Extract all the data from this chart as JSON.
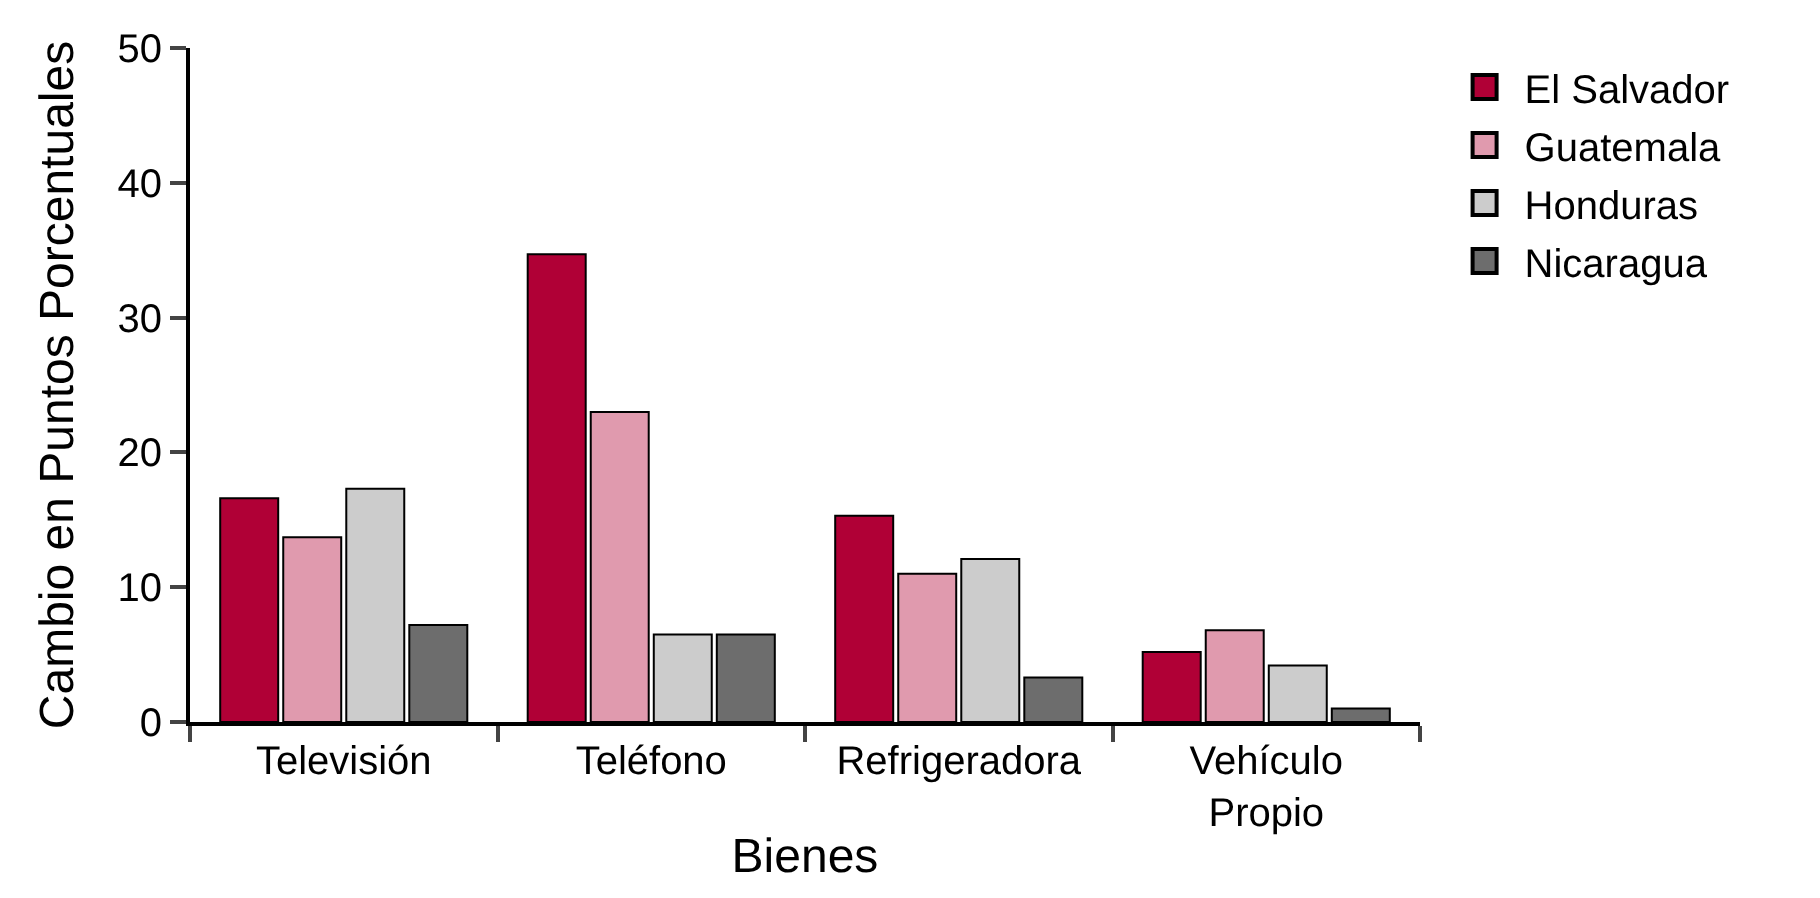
{
  "chart_data": {
    "type": "bar",
    "xlabel": "Bienes",
    "ylabel": "Cambio en Puntos Porcentuales",
    "categories": [
      "Televisión",
      "Teléfono",
      "Refrigeradora",
      "Vehículo\nPropio"
    ],
    "series": [
      {
        "name": "El Salvador",
        "color": "#b00036",
        "values": [
          16.6,
          34.7,
          15.3,
          5.2
        ]
      },
      {
        "name": "Guatemala",
        "color": "#e09aae",
        "values": [
          13.7,
          23.0,
          11.0,
          6.8
        ]
      },
      {
        "name": "Honduras",
        "color": "#cccccc",
        "values": [
          17.3,
          6.5,
          12.1,
          4.2
        ]
      },
      {
        "name": "Nicaragua",
        "color": "#6d6d6d",
        "values": [
          7.2,
          6.5,
          3.3,
          1.0
        ]
      }
    ],
    "ylim": [
      0,
      50
    ],
    "yticks": [
      0,
      10,
      20,
      30,
      40,
      50
    ],
    "legend": "top right"
  }
}
